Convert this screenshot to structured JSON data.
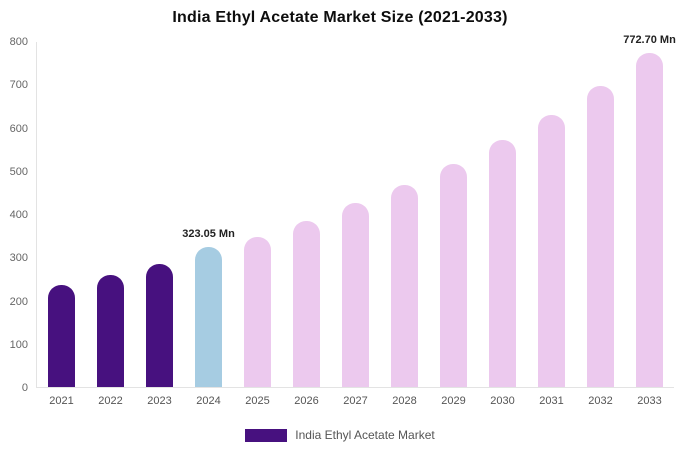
{
  "title": "India Ethyl Acetate Market Size (2021-2033)",
  "legend": {
    "label": "India Ethyl Acetate Market"
  },
  "colors": {
    "historical": "#47117f",
    "highlight": "#a6cce2",
    "forecast": "#ecc9ee",
    "legend_swatch": "#47117f"
  },
  "chart_data": {
    "type": "bar",
    "title": "India Ethyl Acetate Market Size (2021-2033)",
    "xlabel": "",
    "ylabel": "",
    "ylim": [
      0,
      800
    ],
    "yticks": [
      0,
      100,
      200,
      300,
      400,
      500,
      600,
      700,
      800
    ],
    "grid": false,
    "legend_position": "bottom",
    "categories": [
      "2021",
      "2022",
      "2023",
      "2024",
      "2025",
      "2026",
      "2027",
      "2028",
      "2029",
      "2030",
      "2031",
      "2032",
      "2033"
    ],
    "values": [
      235,
      258,
      285,
      323.05,
      348,
      383,
      425,
      468,
      515,
      570,
      630,
      695,
      772.7
    ],
    "bar_styles": [
      "historical",
      "historical",
      "historical",
      "highlight",
      "forecast",
      "forecast",
      "forecast",
      "forecast",
      "forecast",
      "forecast",
      "forecast",
      "forecast",
      "forecast"
    ],
    "annotations": [
      {
        "index": 3,
        "text": "323.05 Mn"
      },
      {
        "index": 12,
        "text": "772.70 Mn"
      }
    ]
  }
}
